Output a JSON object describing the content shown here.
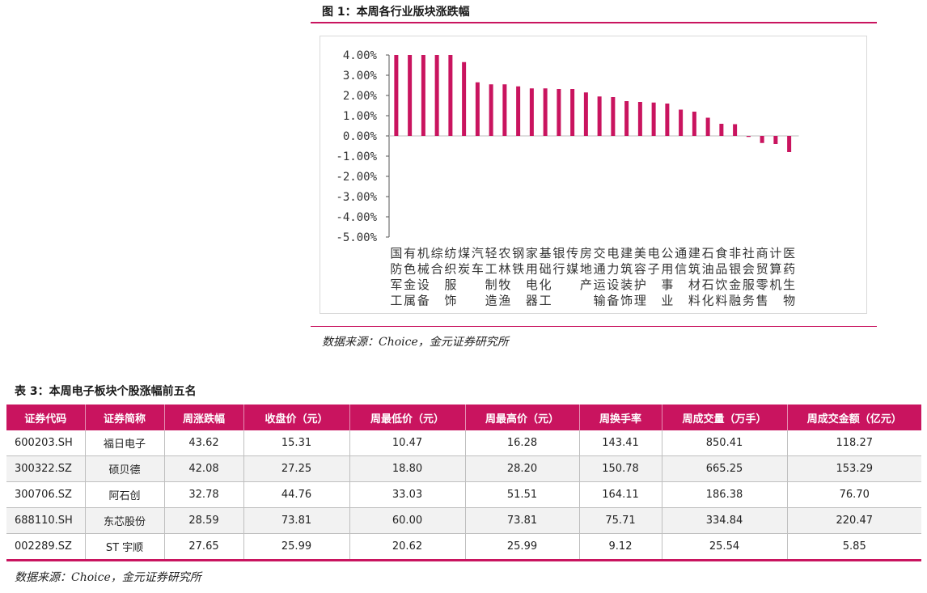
{
  "figure": {
    "title": "图 1：本周各行业版块涨跌幅",
    "source": "数据来源：Choice，金元证券研究所"
  },
  "chart_data": {
    "type": "bar",
    "title": "",
    "xlabel": "",
    "ylabel": "",
    "ylim": [
      -5,
      4
    ],
    "yticks": [
      "4.00%",
      "3.00%",
      "2.00%",
      "1.00%",
      "0.00%",
      "-1.00%",
      "-2.00%",
      "-3.00%",
      "-4.00%",
      "-5.00%"
    ],
    "bar_color": "#c9145f",
    "grid": false,
    "categories": [
      "国防军工",
      "有色金属",
      "机械设备",
      "综合",
      "纺织服饰",
      "煤炭",
      "汽车",
      "轻工制造",
      "农林牧渔",
      "钢铁",
      "家用电器",
      "基础化工",
      "银行",
      "传媒",
      "房地产",
      "交通运输",
      "电力设备",
      "建筑装饰",
      "美容护理",
      "电子",
      "公用事业",
      "通信",
      "建筑材料",
      "石油石化",
      "食品饮料",
      "非银金融",
      "社会服务",
      "商贸零售",
      "计算机",
      "医药生物"
    ],
    "labels": [
      [
        "国",
        "防",
        "军",
        "工"
      ],
      [
        "有",
        "色",
        "金",
        "属"
      ],
      [
        "机",
        "械",
        "设",
        "备"
      ],
      [
        "综",
        "合",
        "",
        ""
      ],
      [
        "纺",
        "织",
        "服",
        "饰"
      ],
      [
        "煤",
        "炭",
        "",
        ""
      ],
      [
        "汽",
        "车",
        "",
        ""
      ],
      [
        "轻",
        "工",
        "制",
        "造"
      ],
      [
        "农",
        "林",
        "牧",
        "渔"
      ],
      [
        "钢",
        "铁",
        "",
        ""
      ],
      [
        "家",
        "用",
        "电",
        "器"
      ],
      [
        "基",
        "础",
        "化",
        "工"
      ],
      [
        "银",
        "行",
        "",
        ""
      ],
      [
        "传",
        "媒",
        "",
        ""
      ],
      [
        "房",
        "地",
        "产",
        ""
      ],
      [
        "交",
        "通",
        "运",
        "输"
      ],
      [
        "电",
        "力",
        "设",
        "备"
      ],
      [
        "建",
        "筑",
        "装",
        "饰"
      ],
      [
        "美",
        "容",
        "护",
        "理"
      ],
      [
        "电",
        "子",
        "",
        ""
      ],
      [
        "公",
        "用",
        "事",
        "业"
      ],
      [
        "通",
        "信",
        "",
        ""
      ],
      [
        "建",
        "筑",
        "材",
        "料"
      ],
      [
        "石",
        "油",
        "石",
        "化"
      ],
      [
        "食",
        "品",
        "饮",
        "料"
      ],
      [
        "非",
        "银",
        "金",
        "融"
      ],
      [
        "社",
        "会",
        "服",
        "务"
      ],
      [
        "商",
        "贸",
        "零",
        "售"
      ],
      [
        "计",
        "算",
        "机",
        ""
      ],
      [
        "医",
        "药",
        "生",
        "物"
      ]
    ],
    "values": [
      4.0,
      4.0,
      4.0,
      4.0,
      4.0,
      3.65,
      2.65,
      2.55,
      2.55,
      2.45,
      2.35,
      2.35,
      2.32,
      2.32,
      2.15,
      1.95,
      1.92,
      1.72,
      1.68,
      1.65,
      1.6,
      1.3,
      1.2,
      0.9,
      0.6,
      0.58,
      -0.05,
      -0.35,
      -0.4,
      -0.8
    ]
  },
  "table": {
    "title": "表 3：本周电子板块个股涨幅前五名",
    "headers": [
      "证券代码",
      "证券简称",
      "周涨跌幅",
      "收盘价（元）",
      "周最低价（元）",
      "周最高价（元）",
      "周换手率",
      "周成交量（万手）",
      "周成交金额（亿元）"
    ],
    "rows": [
      [
        "600203.SH",
        "福日电子",
        "43.62",
        "15.31",
        "10.47",
        "16.28",
        "143.41",
        "850.41",
        "118.27"
      ],
      [
        "300322.SZ",
        "硕贝德",
        "42.08",
        "27.25",
        "18.80",
        "28.20",
        "150.78",
        "665.25",
        "153.29"
      ],
      [
        "300706.SZ",
        "阿石创",
        "32.78",
        "44.76",
        "33.03",
        "51.51",
        "164.11",
        "186.38",
        "76.70"
      ],
      [
        "688110.SH",
        "东芯股份",
        "28.59",
        "73.81",
        "60.00",
        "73.81",
        "75.71",
        "334.84",
        "220.47"
      ],
      [
        "002289.SZ",
        "ST 宇顺",
        "27.65",
        "25.99",
        "20.62",
        "25.99",
        "9.12",
        "25.54",
        "5.85"
      ]
    ],
    "source": "数据来源：Choice，金元证券研究所"
  }
}
